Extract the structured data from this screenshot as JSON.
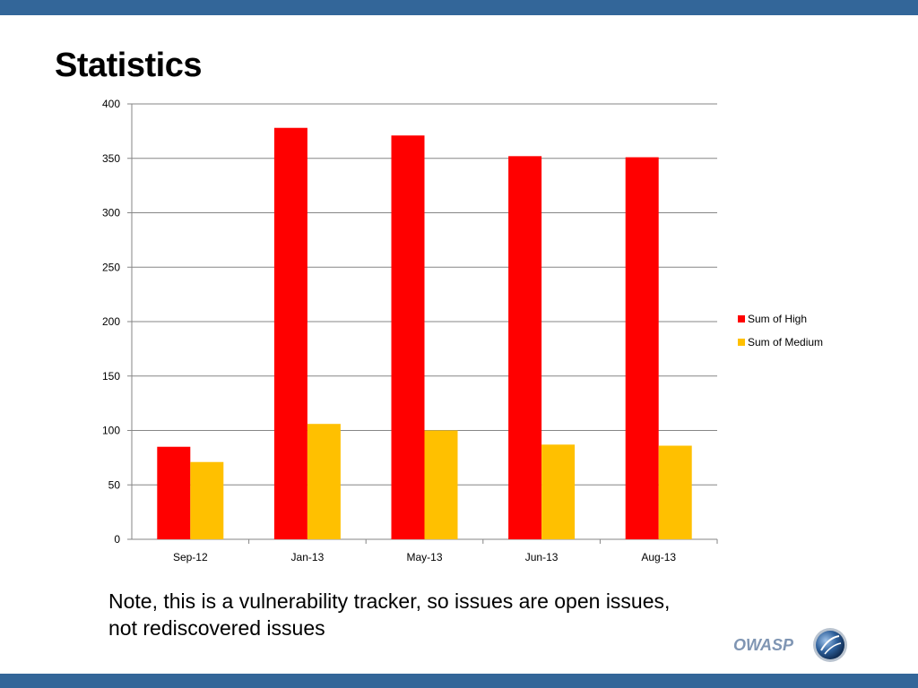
{
  "slide": {
    "title": "Statistics",
    "note": "Note, this is a vulnerability tracker, so issues are open issues, not rediscovered issues",
    "logo_text": "OWASP"
  },
  "colors": {
    "bar_accent": "#336699",
    "high": "#ff0000",
    "medium": "#ffc000"
  },
  "chart_data": {
    "type": "bar",
    "categories": [
      "Sep-12",
      "Jan-13",
      "May-13",
      "Jun-13",
      "Aug-13"
    ],
    "series": [
      {
        "name": "Sum of High",
        "values": [
          85,
          378,
          371,
          352,
          351
        ],
        "color": "#ff0000"
      },
      {
        "name": "Sum of Medium",
        "values": [
          71,
          106,
          100,
          87,
          86
        ],
        "color": "#ffc000"
      }
    ],
    "ylim": [
      0,
      400
    ],
    "yticks": [
      0,
      50,
      100,
      150,
      200,
      250,
      300,
      350,
      400
    ],
    "grid": true,
    "legend": "right"
  }
}
